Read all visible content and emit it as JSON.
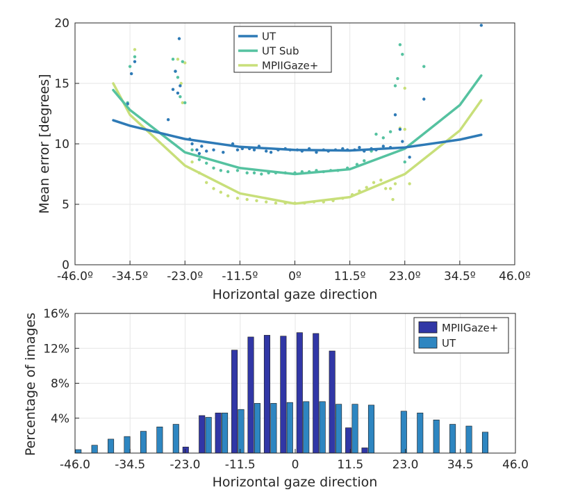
{
  "chart_data": [
    {
      "type": "scatter",
      "xlabel": "Horizontal gaze direction",
      "ylabel": "Mean error [degrees]",
      "xlim": [
        -46,
        46
      ],
      "ylim": [
        0,
        20
      ],
      "xticks": [
        -46,
        -34.5,
        -23,
        -11.5,
        0,
        11.5,
        23,
        34.5,
        46
      ],
      "xtick_labels": [
        "-46.0º",
        "-34.5º",
        "-23.0º",
        "-11.5º",
        "0º",
        "11.5º",
        "23.0º",
        "34.5º",
        "46.0º"
      ],
      "yticks": [
        0,
        5,
        10,
        15,
        20
      ],
      "ytick_labels": [
        "0",
        "5",
        "10",
        "15",
        "20"
      ],
      "grid": true,
      "legend_position": "top-center",
      "legend": [
        "UT",
        "UT Sub",
        "MPIIGaze+"
      ],
      "colors": {
        "UT": "#2e7ab6",
        "UT Sub": "#55c2a0",
        "MPIIGaze+": "#c8df7a"
      },
      "series": [
        {
          "name": "UT",
          "fit_x": [
            -38,
            -34.5,
            -23,
            -11.5,
            0,
            11.5,
            23,
            34.5,
            39
          ],
          "fit_y": [
            11.95,
            11.5,
            10.4,
            9.75,
            9.5,
            9.45,
            9.7,
            10.35,
            10.75
          ],
          "points": [
            [
              -35,
              13.3
            ],
            [
              -34.2,
              15.8
            ],
            [
              -33.5,
              16.8
            ],
            [
              -26.5,
              12
            ],
            [
              -25.5,
              14.5
            ],
            [
              -24.5,
              14.2
            ],
            [
              -24.2,
              18.7
            ],
            [
              -24,
              14.8
            ],
            [
              -25,
              16
            ],
            [
              -22,
              10.4
            ],
            [
              -21.5,
              10
            ],
            [
              -20.5,
              9.5
            ],
            [
              -20,
              9.2
            ],
            [
              -19.5,
              9.8
            ],
            [
              -18.5,
              9.4
            ],
            [
              -17,
              9.5
            ],
            [
              -15,
              9.3
            ],
            [
              -13,
              10
            ],
            [
              -12,
              9.5
            ],
            [
              -11,
              9.6
            ],
            [
              -9.5,
              9.6
            ],
            [
              -8.5,
              9.5
            ],
            [
              -7.5,
              9.8
            ],
            [
              -6,
              9.4
            ],
            [
              -5,
              9.3
            ],
            [
              -3.5,
              9.5
            ],
            [
              -2,
              9.6
            ],
            [
              -1,
              9.5
            ],
            [
              0.5,
              9.5
            ],
            [
              1.5,
              9.4
            ],
            [
              3,
              9.6
            ],
            [
              4.5,
              9.3
            ],
            [
              6,
              9.5
            ],
            [
              7,
              9.4
            ],
            [
              8.5,
              9.5
            ],
            [
              10,
              9.6
            ],
            [
              11,
              9.5
            ],
            [
              12.5,
              9.5
            ],
            [
              13.5,
              9.7
            ],
            [
              14.5,
              9.4
            ],
            [
              16,
              9.6
            ],
            [
              17,
              9.5
            ],
            [
              18.5,
              9.8
            ],
            [
              20,
              9.7
            ],
            [
              21,
              12.4
            ],
            [
              22,
              11.2
            ],
            [
              22.5,
              10.2
            ],
            [
              24,
              8.9
            ],
            [
              27,
              13.7
            ],
            [
              39,
              19.8
            ]
          ]
        },
        {
          "name": "UT Sub",
          "fit_x": [
            -38,
            -34.5,
            -23,
            -11.5,
            0,
            11.5,
            23,
            34.5,
            39
          ],
          "fit_y": [
            14.45,
            12.8,
            9.3,
            8.0,
            7.5,
            7.9,
            9.6,
            13.2,
            15.65
          ],
          "points": [
            [
              -35,
              13.4
            ],
            [
              -34.5,
              16.4
            ],
            [
              -33.5,
              17.2
            ],
            [
              -25.5,
              17
            ],
            [
              -25,
              16
            ],
            [
              -24.5,
              15.5
            ],
            [
              -24,
              13.9
            ],
            [
              -23.5,
              16.8
            ],
            [
              -23,
              13.4
            ],
            [
              -22,
              10.4
            ],
            [
              -21.5,
              9.5
            ],
            [
              -20,
              8.7
            ],
            [
              -18.5,
              8.4
            ],
            [
              -17,
              8.0
            ],
            [
              -15.5,
              7.8
            ],
            [
              -14,
              7.7
            ],
            [
              -12,
              7.8
            ],
            [
              -10,
              7.6
            ],
            [
              -8.5,
              7.6
            ],
            [
              -7,
              7.5
            ],
            [
              -5.5,
              7.6
            ],
            [
              -4,
              7.6
            ],
            [
              -2,
              7.6
            ],
            [
              0,
              7.6
            ],
            [
              1.5,
              7.7
            ],
            [
              3,
              7.7
            ],
            [
              4.5,
              7.8
            ],
            [
              6,
              7.7
            ],
            [
              7.5,
              7.8
            ],
            [
              9,
              7.8
            ],
            [
              11,
              8.0
            ],
            [
              13,
              8.3
            ],
            [
              14.5,
              8.6
            ],
            [
              16,
              9.4
            ],
            [
              17,
              10.8
            ],
            [
              18.5,
              10.5
            ],
            [
              20,
              11
            ],
            [
              21,
              14.8
            ],
            [
              21.5,
              15.4
            ],
            [
              22,
              18.2
            ],
            [
              22.5,
              17.4
            ],
            [
              23,
              8.5
            ],
            [
              27,
              16.4
            ]
          ]
        },
        {
          "name": "MPIIGaze+",
          "fit_x": [
            -38,
            -34.5,
            -23,
            -11.5,
            0,
            11.5,
            23,
            34.5,
            39
          ],
          "fit_y": [
            15.0,
            12.4,
            8.2,
            5.9,
            5.05,
            5.6,
            7.5,
            11.1,
            13.6
          ],
          "points": [
            [
              -33.5,
              17.8
            ],
            [
              -24.5,
              17
            ],
            [
              -23.8,
              15
            ],
            [
              -23.5,
              13.4
            ],
            [
              -23,
              16.7
            ],
            [
              -21.5,
              8.5
            ],
            [
              -20,
              7.6
            ],
            [
              -18.5,
              6.8
            ],
            [
              -17,
              6.3
            ],
            [
              -15.5,
              6.0
            ],
            [
              -14,
              5.7
            ],
            [
              -12,
              5.5
            ],
            [
              -10,
              5.4
            ],
            [
              -8,
              5.3
            ],
            [
              -6,
              5.2
            ],
            [
              -4,
              5.1
            ],
            [
              -2,
              5.1
            ],
            [
              0,
              5.1
            ],
            [
              2,
              5.1
            ],
            [
              4,
              5.2
            ],
            [
              6,
              5.2
            ],
            [
              8,
              5.3
            ],
            [
              10,
              5.5
            ],
            [
              12,
              5.8
            ],
            [
              13.5,
              6.1
            ],
            [
              15,
              6.4
            ],
            [
              16.5,
              6.8
            ],
            [
              18,
              7.0
            ],
            [
              19,
              6.3
            ],
            [
              20,
              6.3
            ],
            [
              20.5,
              5.4
            ],
            [
              21,
              6.7
            ],
            [
              22,
              11.3
            ],
            [
              23,
              11.2
            ],
            [
              23,
              14.6
            ],
            [
              24,
              6.7
            ]
          ]
        }
      ]
    },
    {
      "type": "bar",
      "xlabel": "Horizontal gaze direction",
      "ylabel": "Percentage of images",
      "xlim": [
        -46,
        46
      ],
      "ylim": [
        0,
        16
      ],
      "xticks": [
        -46,
        -34.5,
        -23,
        -11.5,
        0,
        11.5,
        23,
        34.5,
        46
      ],
      "xtick_labels": [
        "-46.0",
        "-34.5",
        "-23.0",
        "-11.5",
        "0",
        "11.5",
        "23.0",
        "34.5",
        "46.0"
      ],
      "yticks": [
        4,
        8,
        12,
        16
      ],
      "ytick_labels": [
        "4%",
        "8%",
        "12%",
        "16%"
      ],
      "grid": true,
      "legend_position": "top-right",
      "legend": [
        "MPIIGaze+",
        "UT"
      ],
      "colors": {
        "MPIIGaze+": "#3137a6",
        "UT": "#2e86c1"
      },
      "bin_centers": [
        -46,
        -42.6,
        -39.2,
        -35.8,
        -32.4,
        -29,
        -25.6,
        -22.2,
        -18.8,
        -15.4,
        -12,
        -8.6,
        -5.2,
        -1.8,
        1.6,
        5,
        8.4,
        11.8,
        15.2,
        18.6,
        22,
        25.4,
        28.8,
        32.2,
        35.6,
        39,
        42.4,
        45.8
      ],
      "series": [
        {
          "name": "MPIIGaze+",
          "values": [
            0,
            0,
            0,
            0,
            0,
            0,
            0,
            0.7,
            4.3,
            4.6,
            11.8,
            13.3,
            13.5,
            13.4,
            13.8,
            13.7,
            11.7,
            2.9,
            0.6,
            0,
            0,
            0,
            0,
            0,
            0,
            0,
            0,
            0
          ]
        },
        {
          "name": "UT",
          "values": [
            0.4,
            0.9,
            1.6,
            1.9,
            2.5,
            3.0,
            3.3,
            0,
            4.1,
            4.6,
            5.0,
            5.7,
            5.7,
            5.8,
            5.9,
            5.9,
            5.6,
            5.6,
            5.5,
            0,
            4.8,
            4.6,
            3.8,
            3.3,
            3.1,
            2.4,
            0,
            0
          ]
        }
      ]
    }
  ]
}
